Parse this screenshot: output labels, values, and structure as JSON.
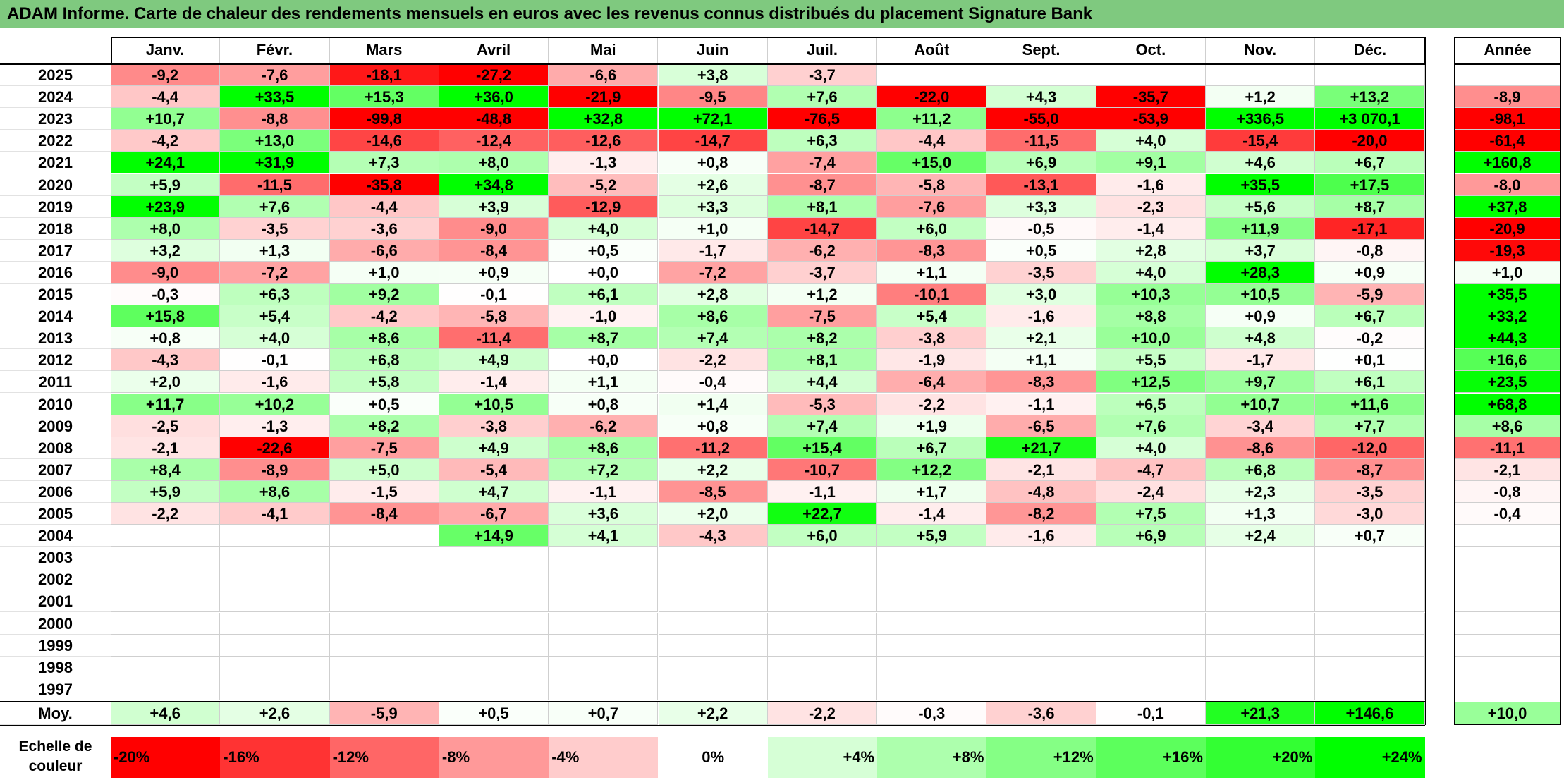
{
  "title": "ADAM Informe. Carte de chaleur des rendements mensuels en euros avec les revenus connus distribués du placement Signature Bank",
  "chart_data": {
    "type": "heatmap",
    "title": "ADAM Informe. Carte de chaleur des rendements mensuels en euros avec les revenus connus distribués du placement Signature Bank",
    "months": [
      "Janv.",
      "Févr.",
      "Mars",
      "Avril",
      "Mai",
      "Juin",
      "Juil.",
      "Août",
      "Sept.",
      "Oct.",
      "Nov.",
      "Déc."
    ],
    "annual_header": "Année",
    "rows": [
      {
        "year": "2025",
        "values": [
          "-9,2",
          "-7,6",
          "-18,1",
          "-27,2",
          "-6,6",
          "+3,8",
          "-3,7",
          "",
          "",
          "",
          "",
          ""
        ],
        "annual": ""
      },
      {
        "year": "2024",
        "values": [
          "-4,4",
          "+33,5",
          "+15,3",
          "+36,0",
          "-21,9",
          "-9,5",
          "+7,6",
          "-22,0",
          "+4,3",
          "-35,7",
          "+1,2",
          "+13,2"
        ],
        "annual": "-8,9"
      },
      {
        "year": "2023",
        "values": [
          "+10,7",
          "-8,8",
          "-99,8",
          "-48,8",
          "+32,8",
          "+72,1",
          "-76,5",
          "+11,2",
          "-55,0",
          "-53,9",
          "+336,5",
          "+3 070,1"
        ],
        "annual": "-98,1"
      },
      {
        "year": "2022",
        "values": [
          "-4,2",
          "+13,0",
          "-14,6",
          "-12,4",
          "-12,6",
          "-14,7",
          "+6,3",
          "-4,4",
          "-11,5",
          "+4,0",
          "-15,4",
          "-20,0"
        ],
        "annual": "-61,4"
      },
      {
        "year": "2021",
        "values": [
          "+24,1",
          "+31,9",
          "+7,3",
          "+8,0",
          "-1,3",
          "+0,8",
          "-7,4",
          "+15,0",
          "+6,9",
          "+9,1",
          "+4,6",
          "+6,7"
        ],
        "annual": "+160,8"
      },
      {
        "year": "2020",
        "values": [
          "+5,9",
          "-11,5",
          "-35,8",
          "+34,8",
          "-5,2",
          "+2,6",
          "-8,7",
          "-5,8",
          "-13,1",
          "-1,6",
          "+35,5",
          "+17,5"
        ],
        "annual": "-8,0"
      },
      {
        "year": "2019",
        "values": [
          "+23,9",
          "+7,6",
          "-4,4",
          "+3,9",
          "-12,9",
          "+3,3",
          "+8,1",
          "-7,6",
          "+3,3",
          "-2,3",
          "+5,6",
          "+8,7"
        ],
        "annual": "+37,8"
      },
      {
        "year": "2018",
        "values": [
          "+8,0",
          "-3,5",
          "-3,6",
          "-9,0",
          "+4,0",
          "+1,0",
          "-14,7",
          "+6,0",
          "-0,5",
          "-1,4",
          "+11,9",
          "-17,1"
        ],
        "annual": "-20,9"
      },
      {
        "year": "2017",
        "values": [
          "+3,2",
          "+1,3",
          "-6,6",
          "-8,4",
          "+0,5",
          "-1,7",
          "-6,2",
          "-8,3",
          "+0,5",
          "+2,8",
          "+3,7",
          "-0,8"
        ],
        "annual": "-19,3"
      },
      {
        "year": "2016",
        "values": [
          "-9,0",
          "-7,2",
          "+1,0",
          "+0,9",
          "+0,0",
          "-7,2",
          "-3,7",
          "+1,1",
          "-3,5",
          "+4,0",
          "+28,3",
          "+0,9"
        ],
        "annual": "+1,0"
      },
      {
        "year": "2015",
        "values": [
          "-0,3",
          "+6,3",
          "+9,2",
          "-0,1",
          "+6,1",
          "+2,8",
          "+1,2",
          "-10,1",
          "+3,0",
          "+10,3",
          "+10,5",
          "-5,9"
        ],
        "annual": "+35,5"
      },
      {
        "year": "2014",
        "values": [
          "+15,8",
          "+5,4",
          "-4,2",
          "-5,8",
          "-1,0",
          "+8,6",
          "-7,5",
          "+5,4",
          "-1,6",
          "+8,8",
          "+0,9",
          "+6,7"
        ],
        "annual": "+33,2"
      },
      {
        "year": "2013",
        "values": [
          "+0,8",
          "+4,0",
          "+8,6",
          "-11,4",
          "+8,7",
          "+7,4",
          "+8,2",
          "-3,8",
          "+2,1",
          "+10,0",
          "+4,8",
          "-0,2"
        ],
        "annual": "+44,3"
      },
      {
        "year": "2012",
        "values": [
          "-4,3",
          "-0,1",
          "+6,8",
          "+4,9",
          "+0,0",
          "-2,2",
          "+8,1",
          "-1,9",
          "+1,1",
          "+5,5",
          "-1,7",
          "+0,1"
        ],
        "annual": "+16,6"
      },
      {
        "year": "2011",
        "values": [
          "+2,0",
          "-1,6",
          "+5,8",
          "-1,4",
          "+1,1",
          "-0,4",
          "+4,4",
          "-6,4",
          "-8,3",
          "+12,5",
          "+9,7",
          "+6,1"
        ],
        "annual": "+23,5"
      },
      {
        "year": "2010",
        "values": [
          "+11,7",
          "+10,2",
          "+0,5",
          "+10,5",
          "+0,8",
          "+1,4",
          "-5,3",
          "-2,2",
          "-1,1",
          "+6,5",
          "+10,7",
          "+11,6"
        ],
        "annual": "+68,8"
      },
      {
        "year": "2009",
        "values": [
          "-2,5",
          "-1,3",
          "+8,2",
          "-3,8",
          "-6,2",
          "+0,8",
          "+7,4",
          "+1,9",
          "-6,5",
          "+7,6",
          "-3,4",
          "+7,7"
        ],
        "annual": "+8,6"
      },
      {
        "year": "2008",
        "values": [
          "-2,1",
          "-22,6",
          "-7,5",
          "+4,9",
          "+8,6",
          "-11,2",
          "+15,4",
          "+6,7",
          "+21,7",
          "+4,0",
          "-8,6",
          "-12,0"
        ],
        "annual": "-11,1"
      },
      {
        "year": "2007",
        "values": [
          "+8,4",
          "-8,9",
          "+5,0",
          "-5,4",
          "+7,2",
          "+2,2",
          "-10,7",
          "+12,2",
          "-2,1",
          "-4,7",
          "+6,8",
          "-8,7"
        ],
        "annual": "-2,1"
      },
      {
        "year": "2006",
        "values": [
          "+5,9",
          "+8,6",
          "-1,5",
          "+4,7",
          "-1,1",
          "-8,5",
          "-1,1",
          "+1,7",
          "-4,8",
          "-2,4",
          "+2,3",
          "-3,5"
        ],
        "annual": "-0,8"
      },
      {
        "year": "2005",
        "values": [
          "-2,2",
          "-4,1",
          "-8,4",
          "-6,7",
          "+3,6",
          "+2,0",
          "+22,7",
          "-1,4",
          "-8,2",
          "+7,5",
          "+1,3",
          "-3,0"
        ],
        "annual": "-0,4"
      },
      {
        "year": "2004",
        "values": [
          "",
          "",
          "",
          "+14,9",
          "+4,1",
          "-4,3",
          "+6,0",
          "+5,9",
          "-1,6",
          "+6,9",
          "+2,4",
          "+0,7"
        ],
        "annual": ""
      },
      {
        "year": "2003",
        "values": [
          "",
          "",
          "",
          "",
          "",
          "",
          "",
          "",
          "",
          "",
          "",
          ""
        ],
        "annual": ""
      },
      {
        "year": "2002",
        "values": [
          "",
          "",
          "",
          "",
          "",
          "",
          "",
          "",
          "",
          "",
          "",
          ""
        ],
        "annual": ""
      },
      {
        "year": "2001",
        "values": [
          "",
          "",
          "",
          "",
          "",
          "",
          "",
          "",
          "",
          "",
          "",
          ""
        ],
        "annual": ""
      },
      {
        "year": "2000",
        "values": [
          "",
          "",
          "",
          "",
          "",
          "",
          "",
          "",
          "",
          "",
          "",
          ""
        ],
        "annual": ""
      },
      {
        "year": "1999",
        "values": [
          "",
          "",
          "",
          "",
          "",
          "",
          "",
          "",
          "",
          "",
          "",
          ""
        ],
        "annual": ""
      },
      {
        "year": "1998",
        "values": [
          "",
          "",
          "",
          "",
          "",
          "",
          "",
          "",
          "",
          "",
          "",
          ""
        ],
        "annual": ""
      },
      {
        "year": "1997",
        "values": [
          "",
          "",
          "",
          "",
          "",
          "",
          "",
          "",
          "",
          "",
          "",
          ""
        ],
        "annual": ""
      }
    ],
    "average": {
      "label": "Moy.",
      "values": [
        "+4,6",
        "+2,6",
        "-5,9",
        "+0,5",
        "+0,7",
        "+2,2",
        "-2,2",
        "-0,3",
        "-3,6",
        "-0,1",
        "+21,3",
        "+146,6"
      ],
      "annual": "+10,0"
    },
    "color_scale": {
      "label": "Echelle de couleur",
      "stops": [
        {
          "label": "-20%",
          "value": -20,
          "color": "#ff0000"
        },
        {
          "label": "-16%",
          "value": -16,
          "color": "#ff3333"
        },
        {
          "label": "-12%",
          "value": -12,
          "color": "#ff6666"
        },
        {
          "label": "-8%",
          "value": -8,
          "color": "#ff9999"
        },
        {
          "label": "-4%",
          "value": -4,
          "color": "#ffcccc"
        },
        {
          "label": "0%",
          "value": 0,
          "color": "#ffffff"
        },
        {
          "label": "+4%",
          "value": 4,
          "color": "#d6ffd6"
        },
        {
          "label": "+8%",
          "value": 8,
          "color": "#adffad"
        },
        {
          "label": "+12%",
          "value": 12,
          "color": "#85ff85"
        },
        {
          "label": "+16%",
          "value": 16,
          "color": "#5cff5c"
        },
        {
          "label": "+20%",
          "value": 20,
          "color": "#33ff33"
        },
        {
          "label": "+24%",
          "value": 24,
          "color": "#00ff00"
        }
      ]
    }
  }
}
